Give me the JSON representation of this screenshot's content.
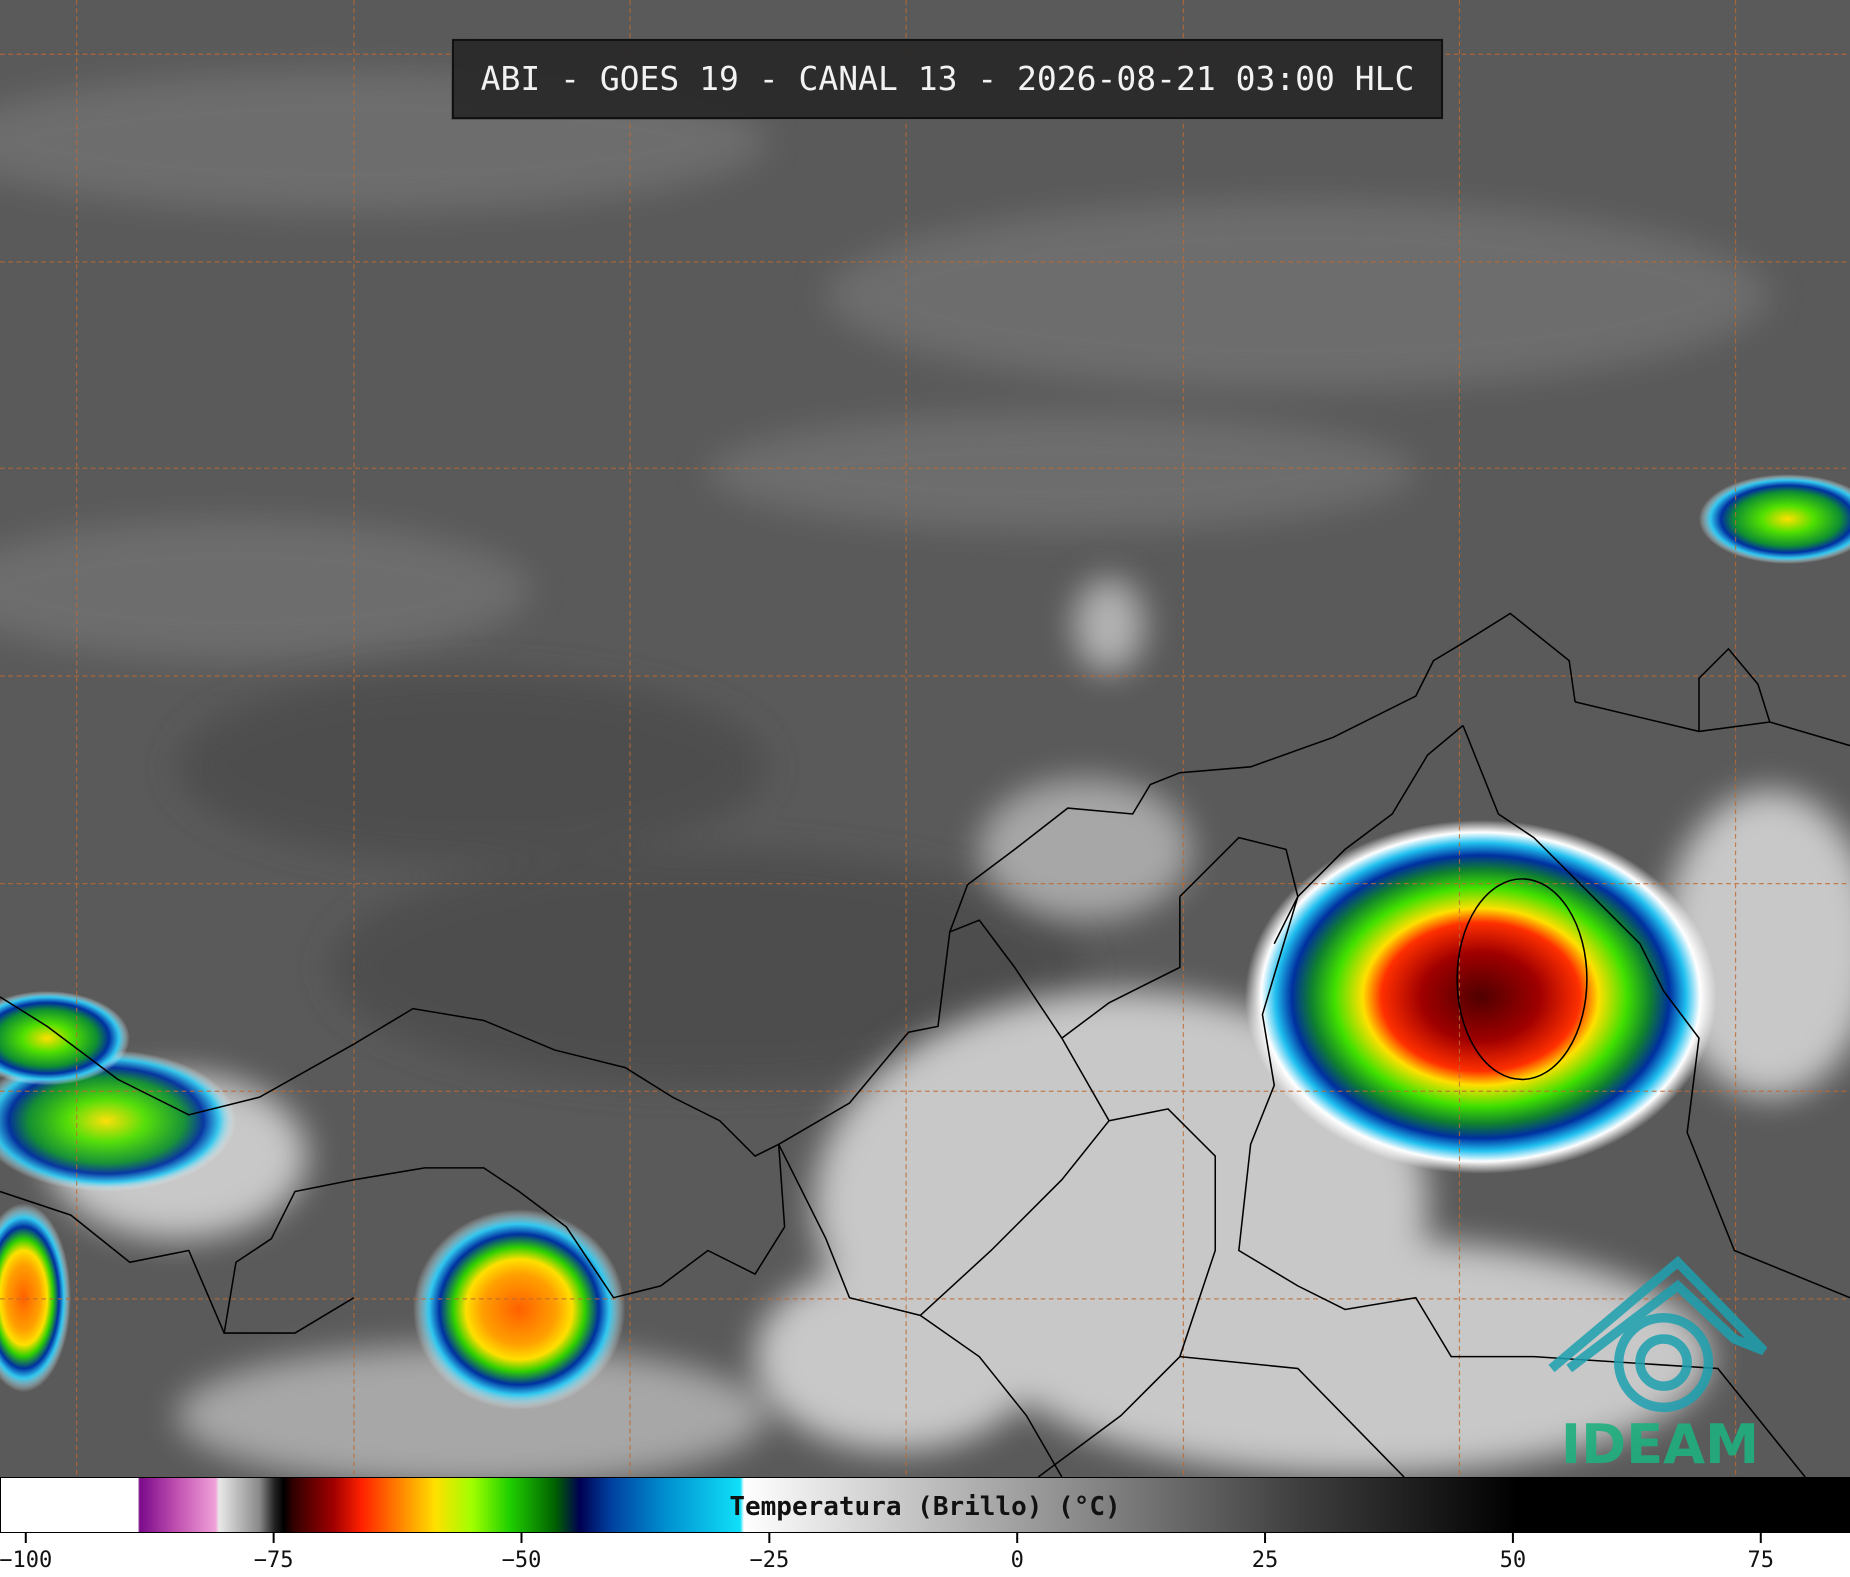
{
  "header": {
    "title": "ABI - GOES 19 - CANAL 13 - 2026-08-21 03:00 HLC"
  },
  "colorbar": {
    "label": "Temperatura (Brillo) (°C)",
    "lim": [
      -102.6,
      84
    ],
    "ticks": [
      {
        "value": -100,
        "label": "−100"
      },
      {
        "value": -75,
        "label": "−75"
      },
      {
        "value": -50,
        "label": "−50"
      },
      {
        "value": -25,
        "label": "−25"
      },
      0,
      25,
      50,
      75
    ]
  },
  "logo": {
    "text": "IDEAM"
  }
}
